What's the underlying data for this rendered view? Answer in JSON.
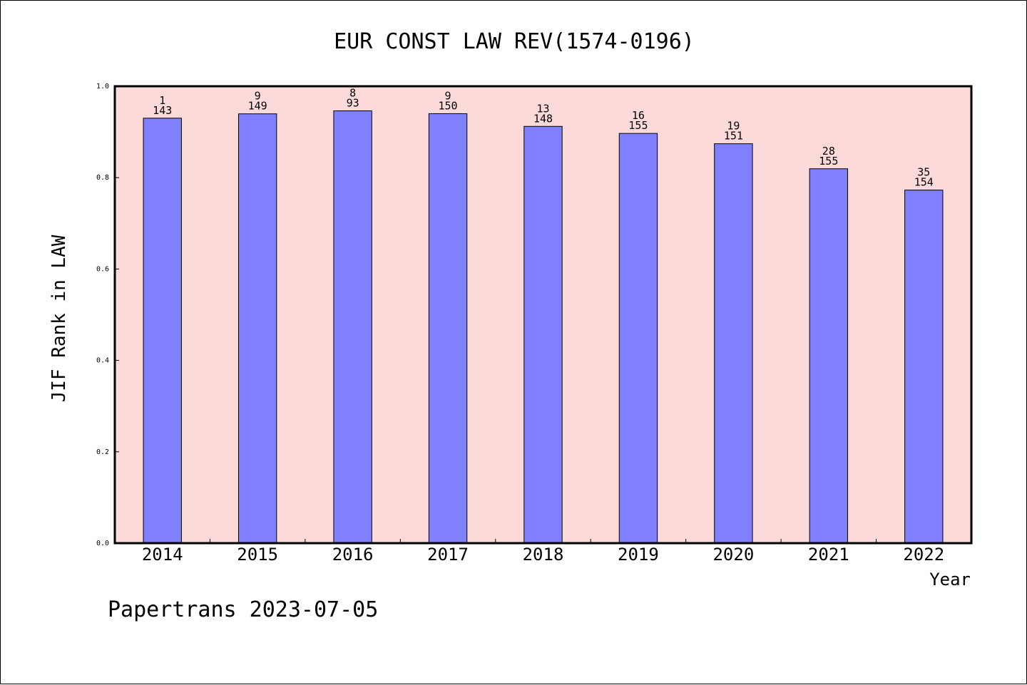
{
  "footer": {
    "text": "Papertrans 2023-07-05"
  },
  "colors": {
    "plot_background": "#fddada",
    "bar_fill": "#8080ff",
    "bar_stroke": "#000000"
  },
  "chart_data": {
    "type": "bar",
    "title": "EUR CONST LAW REV(1574-0196)",
    "xlabel": "Year",
    "ylabel": "JIF Rank in LAW",
    "ylim": [
      0,
      1.0
    ],
    "yticks": [
      "0.0",
      "0.2",
      "0.4",
      "0.6",
      "0.8",
      "1.0"
    ],
    "categories": [
      "2014",
      "2015",
      "2016",
      "2017",
      "2018",
      "2019",
      "2020",
      "2021",
      "2022"
    ],
    "values": [
      0.9301,
      0.9396,
      0.9462,
      0.94,
      0.9122,
      0.8968,
      0.8742,
      0.8194,
      0.7727
    ],
    "rank_labels": [
      "1",
      "9",
      "8",
      "9",
      "13",
      "16",
      "19",
      "28",
      "35"
    ],
    "total_labels": [
      "143",
      "149",
      "93",
      "150",
      "148",
      "155",
      "151",
      "155",
      "154"
    ],
    "grid": false,
    "legend": "none"
  }
}
